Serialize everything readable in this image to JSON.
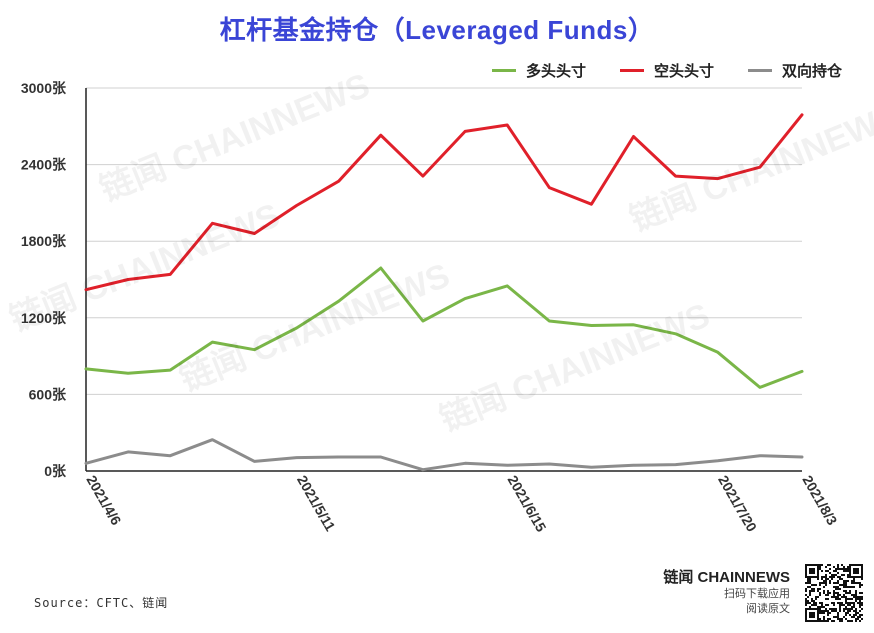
{
  "chart_data": {
    "type": "line",
    "title": "杠杆基金持仓（Leveraged Funds）",
    "ylim": [
      0,
      3000
    ],
    "y_ticks": [
      "0张",
      "600张",
      "1200张",
      "1800张",
      "2400张",
      "3000张"
    ],
    "x": [
      "2021/4/6",
      "2021/4/13",
      "2021/4/20",
      "2021/4/27",
      "2021/5/4",
      "2021/5/11",
      "2021/5/18",
      "2021/5/25",
      "2021/6/1",
      "2021/6/8",
      "2021/6/15",
      "2021/6/22",
      "2021/6/29",
      "2021/7/6",
      "2021/7/13",
      "2021/7/20",
      "2021/7/27",
      "2021/8/3"
    ],
    "x_tick_labels": [
      "2021/4/6",
      "2021/5/11",
      "2021/6/15",
      "2021/7/20",
      "2021/8/3"
    ],
    "series": [
      {
        "name": "多头头寸",
        "color": "#7ab648",
        "values": [
          800,
          765,
          790,
          1010,
          950,
          1120,
          1330,
          1590,
          1175,
          1350,
          1450,
          1175,
          1140,
          1145,
          1075,
          930,
          655,
          780
        ]
      },
      {
        "name": "空头头寸",
        "color": "#e0202a",
        "values": [
          1420,
          1500,
          1540,
          1940,
          1860,
          2080,
          2270,
          2630,
          2310,
          2660,
          2710,
          2220,
          2090,
          2620,
          2310,
          2290,
          2380,
          2790
        ]
      },
      {
        "name": "双向持仓",
        "color": "#8c8c8c",
        "values": [
          60,
          150,
          120,
          245,
          75,
          105,
          110,
          110,
          10,
          60,
          45,
          55,
          30,
          45,
          50,
          80,
          120,
          110
        ]
      }
    ],
    "grid": true,
    "legend_position": "top-right"
  },
  "source": "Source：CFTC、链闻",
  "brand": {
    "name": "链闻 CHAINNEWS",
    "line1": "扫码下载应用",
    "line2": "阅读原文"
  },
  "watermark": "链闻 CHAINNEWS"
}
